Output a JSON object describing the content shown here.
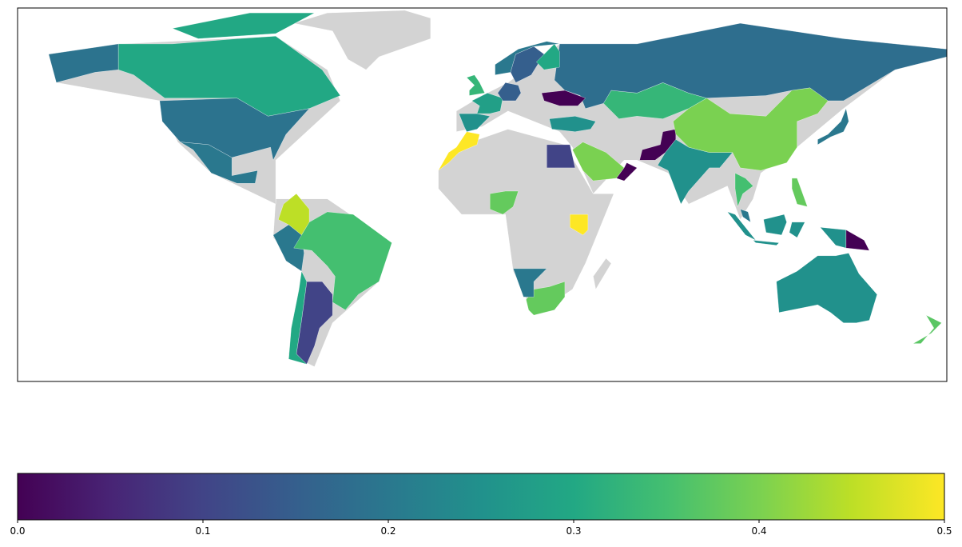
{
  "chart_data": {
    "type": "choropleth",
    "colormap": "viridis",
    "values": [
      0.3,
      0.3,
      0.19,
      0.19,
      0.2,
      0.45,
      0.2,
      0.35,
      0.1,
      0.3,
      0.5,
      0.1,
      0.5,
      0.38,
      0.38,
      0.2,
      0.4,
      0.0,
      0.0,
      0.25,
      0.4,
      0.33,
      0.18,
      0.0,
      0.25,
      0.2,
      0.15,
      0.3,
      0.33,
      0.28,
      0.25,
      0.15,
      0.2,
      0.25,
      0.0,
      0.25,
      0.37,
      0.38,
      0.35,
      0.2
    ],
    "clim": [
      0,
      0.5
    ],
    "cticks": [
      {
        "value": 0,
        "label": "0.0"
      },
      0.1,
      0.2,
      0.3,
      0.4,
      {
        "value": 0.5,
        "label": "0.5"
      }
    ]
  }
}
